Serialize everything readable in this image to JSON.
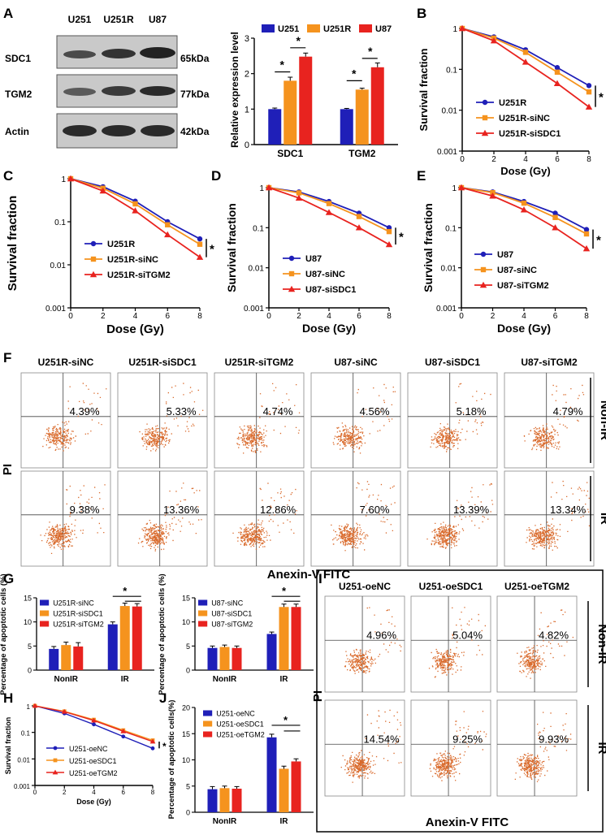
{
  "colors": {
    "blue": "#1f1fb8",
    "orange": "#f5931e",
    "red": "#e8231f",
    "axis": "#000000",
    "dot": "#d9692a"
  },
  "panelA": {
    "letter": "A",
    "lanes": [
      "U251",
      "U251R",
      "U87"
    ],
    "rows": [
      {
        "name": "SDC1",
        "kda": "65kDa"
      },
      {
        "name": "TGM2",
        "kda": "77kDa"
      },
      {
        "name": "Actin",
        "kda": "42kDa"
      }
    ],
    "chart_data": {
      "type": "bar",
      "categories": [
        "SDC1",
        "TGM2"
      ],
      "series": [
        {
          "name": "U251",
          "values": [
            1.0,
            1.0
          ],
          "errors": [
            0.03,
            0.02
          ]
        },
        {
          "name": "U251R",
          "values": [
            1.8,
            1.55
          ],
          "errors": [
            0.1,
            0.04
          ]
        },
        {
          "name": "U87",
          "values": [
            2.48,
            2.18
          ],
          "errors": [
            0.1,
            0.12
          ]
        }
      ],
      "ylabel": "Relative expression level",
      "ylim": [
        0,
        3
      ],
      "yticks": [
        "0",
        "1",
        "2",
        "3"
      ],
      "star": "*"
    }
  },
  "survival": [
    {
      "letter": "B",
      "ylabel": "Survival fraction",
      "xlabel": "Dose (Gy)",
      "chart_data": {
        "type": "line",
        "x": [
          0,
          2,
          4,
          6,
          8
        ],
        "series": [
          {
            "name": "U251R",
            "values": [
              1,
              0.62,
              0.3,
              0.11,
              0.04
            ]
          },
          {
            "name": "U251R-siNC",
            "values": [
              1,
              0.58,
              0.26,
              0.085,
              0.028
            ]
          },
          {
            "name": "U251R-siSDC1",
            "values": [
              1,
              0.5,
              0.15,
              0.045,
              0.012
            ]
          }
        ]
      }
    },
    {
      "letter": "C",
      "ylabel": "Survival fraction",
      "xlabel": "Dose (Gy)",
      "chart_data": {
        "type": "line",
        "x": [
          0,
          2,
          4,
          6,
          8
        ],
        "series": [
          {
            "name": "U251R",
            "values": [
              1,
              0.65,
              0.3,
              0.1,
              0.04
            ]
          },
          {
            "name": "U251R-siNC",
            "values": [
              1,
              0.6,
              0.26,
              0.085,
              0.03
            ]
          },
          {
            "name": "U251R-siTGM2",
            "values": [
              1,
              0.52,
              0.18,
              0.05,
              0.015
            ]
          }
        ]
      }
    },
    {
      "letter": "D",
      "ylabel": "Survival fraction",
      "xlabel": "Dose (Gy)",
      "chart_data": {
        "type": "line",
        "x": [
          0,
          2,
          4,
          6,
          8
        ],
        "series": [
          {
            "name": "U87",
            "values": [
              1,
              0.78,
              0.45,
              0.23,
              0.1
            ]
          },
          {
            "name": "U87-siNC",
            "values": [
              1,
              0.74,
              0.4,
              0.19,
              0.08
            ]
          },
          {
            "name": "U87-siSDC1",
            "values": [
              1,
              0.55,
              0.24,
              0.1,
              0.038
            ]
          }
        ]
      }
    },
    {
      "letter": "E",
      "ylabel": "Survival fraction",
      "xlabel": "Dose (Gy)",
      "chart_data": {
        "type": "line",
        "x": [
          0,
          2,
          4,
          6,
          8
        ],
        "series": [
          {
            "name": "U87",
            "values": [
              1,
              0.78,
              0.45,
              0.23,
              0.09
            ]
          },
          {
            "name": "U87-siNC",
            "values": [
              1,
              0.75,
              0.41,
              0.18,
              0.07
            ]
          },
          {
            "name": "U87-siTGM2",
            "values": [
              1,
              0.62,
              0.28,
              0.1,
              0.03
            ]
          }
        ]
      }
    }
  ],
  "panelF": {
    "letter": "F",
    "columns": [
      "U251R-siNC",
      "U251R-siSDC1",
      "U251R-siTGM2",
      "U87-siNC",
      "U87-siSDC1",
      "U87-siTGM2"
    ],
    "nonir": [
      "4.39%",
      "5.33%",
      "4.74%",
      "4.56%",
      "5.18%",
      "4.79%"
    ],
    "ir": [
      "9.38%",
      "13.36%",
      "12.86%",
      "7.60%",
      "13.39%",
      "13.34%"
    ],
    "nonir_label": "Non-IR",
    "ir_label": "IR",
    "ylabel": "PI",
    "xlabel": "Anexin-V FITC"
  },
  "panelG": {
    "letter": "G",
    "ylabel": "Percentage of apoptotic cells (%)",
    "charts": [
      {
        "chart_data": {
          "type": "bar",
          "categories": [
            "NonIR",
            "IR"
          ],
          "series": [
            {
              "name": "U251R-siNC",
              "values": [
                4.4,
                9.5
              ],
              "errors": [
                0.5,
                0.5
              ]
            },
            {
              "name": "U251R-siSDC1",
              "values": [
                5.2,
                13.3
              ],
              "errors": [
                0.6,
                0.6
              ]
            },
            {
              "name": "U251R-siTGM2",
              "values": [
                4.9,
                13.2
              ],
              "errors": [
                0.8,
                0.6
              ]
            }
          ],
          "ylim": [
            0,
            15
          ],
          "yticks": [
            "0",
            "5",
            "10",
            "15"
          ],
          "star": "*"
        }
      },
      {
        "chart_data": {
          "type": "bar",
          "categories": [
            "NonIR",
            "IR"
          ],
          "series": [
            {
              "name": "U87-siNC",
              "values": [
                4.6,
                7.5
              ],
              "errors": [
                0.4,
                0.4
              ]
            },
            {
              "name": "U87-siSDC1",
              "values": [
                4.8,
                13.1
              ],
              "errors": [
                0.4,
                0.6
              ]
            },
            {
              "name": "U87-siTGM2",
              "values": [
                4.6,
                13.1
              ],
              "errors": [
                0.4,
                0.6
              ]
            }
          ],
          "ylim": [
            0,
            15
          ],
          "yticks": [
            "0",
            "5",
            "10",
            "15"
          ],
          "star": "*"
        }
      }
    ]
  },
  "panelH": {
    "letter": "H",
    "ylabel": "Survival fraction",
    "xlabel": "Dose (Gy)",
    "chart_data": {
      "type": "line",
      "x": [
        0,
        2,
        4,
        6,
        8
      ],
      "series": [
        {
          "name": "U251-oeNC",
          "values": [
            1,
            0.52,
            0.2,
            0.07,
            0.025
          ]
        },
        {
          "name": "U251-oeSDC1",
          "values": [
            1,
            0.62,
            0.3,
            0.12,
            0.05
          ]
        },
        {
          "name": "U251-oeTGM2",
          "values": [
            1,
            0.6,
            0.28,
            0.11,
            0.045
          ]
        }
      ]
    }
  },
  "panelI": {
    "letter": "I",
    "columns": [
      "U251-oeNC",
      "U251-oeSDC1",
      "U251-oeTGM2"
    ],
    "nonir": [
      "4.96%",
      "5.04%",
      "4.82%"
    ],
    "ir": [
      "14.54%",
      "9.25%",
      "9.93%"
    ],
    "nonir_label": "Non-IR",
    "ir_label": "IR",
    "ylabel": "PI",
    "xlabel": "Anexin-V FITC"
  },
  "panelJ": {
    "letter": "J",
    "ylabel": "Percentage of apoptotic cells(%)",
    "chart_data": {
      "type": "bar",
      "categories": [
        "NonIR",
        "IR"
      ],
      "series": [
        {
          "name": "U251-oeNC",
          "values": [
            4.4,
            14.3
          ],
          "errors": [
            0.5,
            0.6
          ]
        },
        {
          "name": "U251-oeSDC1",
          "values": [
            4.6,
            8.3
          ],
          "errors": [
            0.4,
            0.5
          ]
        },
        {
          "name": "U251-oeTGM2",
          "values": [
            4.5,
            9.7
          ],
          "errors": [
            0.4,
            0.5
          ]
        }
      ],
      "ylim": [
        0,
        20
      ],
      "yticks": [
        "0",
        "5",
        "10",
        "15",
        "20"
      ],
      "star": "*"
    }
  }
}
